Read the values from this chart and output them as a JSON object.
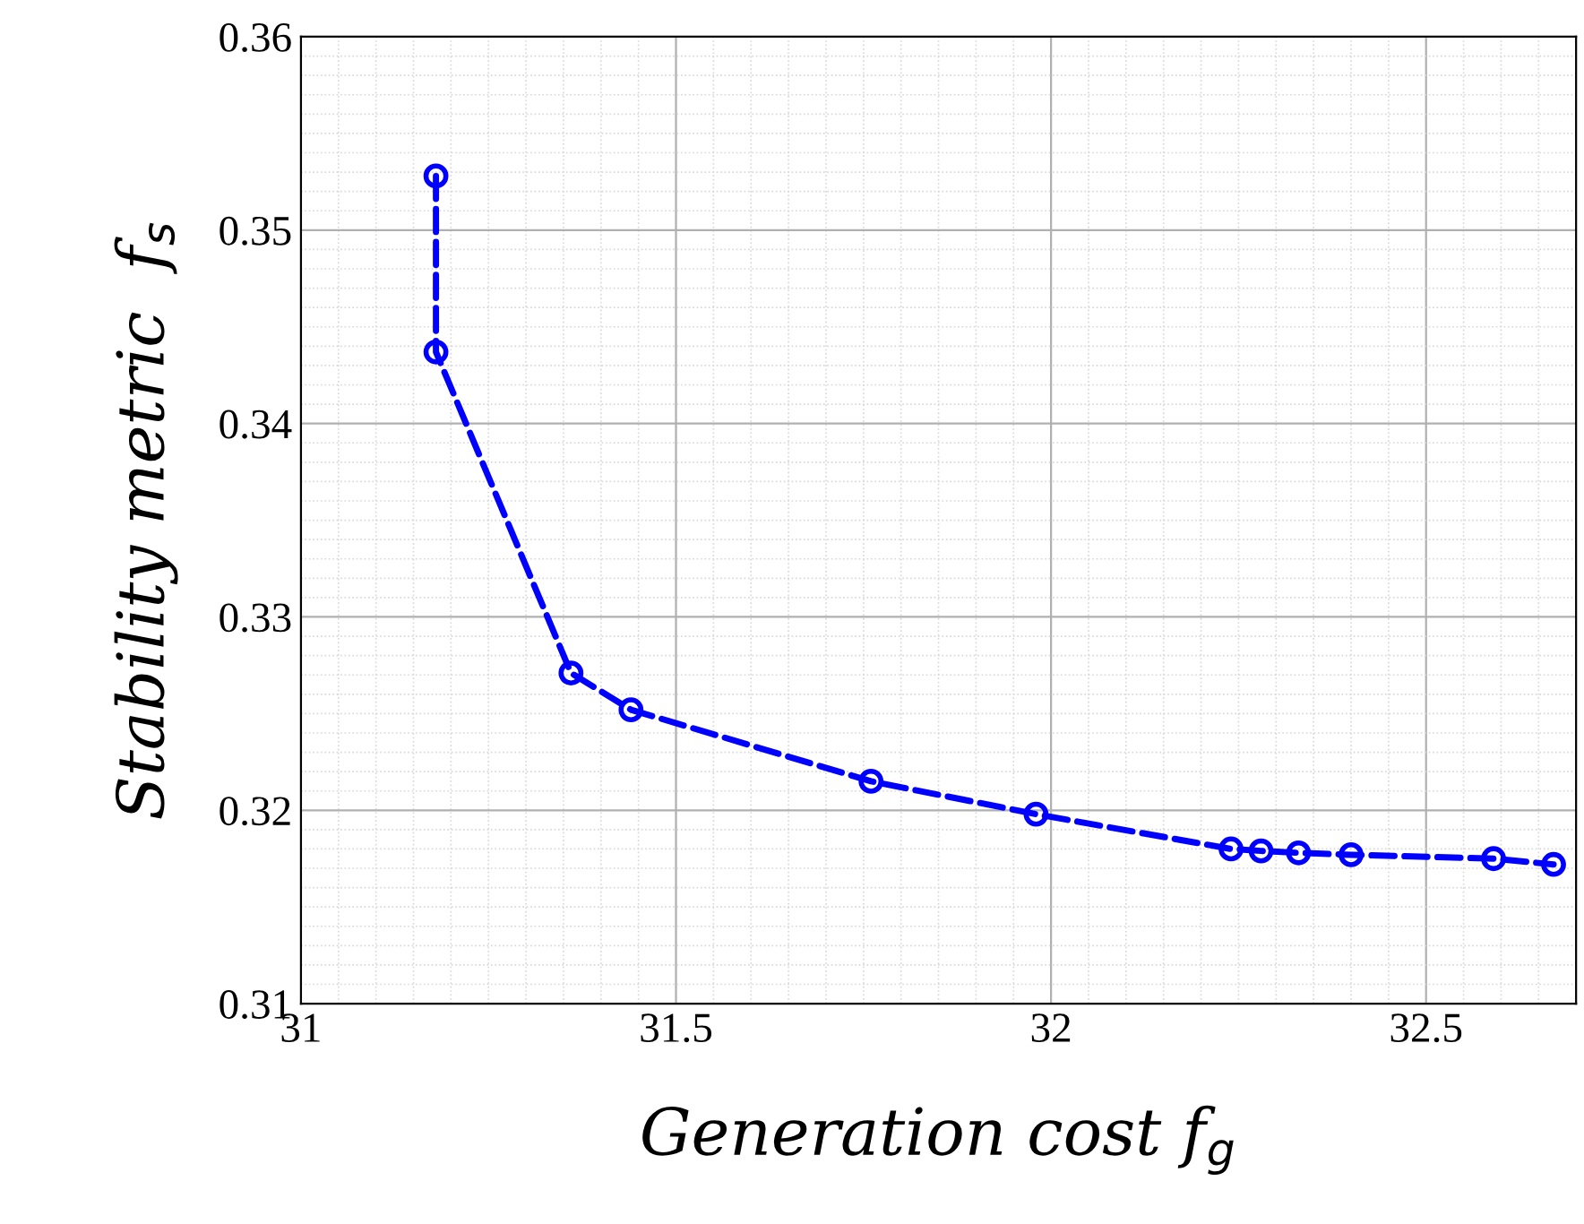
{
  "chart_data": {
    "type": "line",
    "xlabel": "Generation cost f$_{g}$",
    "ylabel": "Stability metric  f$_{s}$",
    "x": [
      31.18,
      31.18,
      31.36,
      31.44,
      31.76,
      31.98,
      32.24,
      32.28,
      32.33,
      32.4,
      32.59,
      32.67
    ],
    "series": [
      {
        "color": "#0000ff",
        "values": [
          0.3528,
          0.3437,
          0.3271,
          0.3252,
          0.3215,
          0.3198,
          0.318,
          0.3179,
          0.3178,
          0.3177,
          0.3175,
          0.3172
        ]
      }
    ],
    "xlim": [
      31,
      32.7
    ],
    "xticks": [
      31,
      31.5,
      32,
      32.5
    ],
    "ylim": [
      0.31,
      0.36
    ],
    "yticks": [
      0.31,
      0.32,
      0.33,
      0.34,
      0.35,
      0.36
    ],
    "grid": true,
    "marker": "circle",
    "line_style": "dashed",
    "legend": false
  }
}
